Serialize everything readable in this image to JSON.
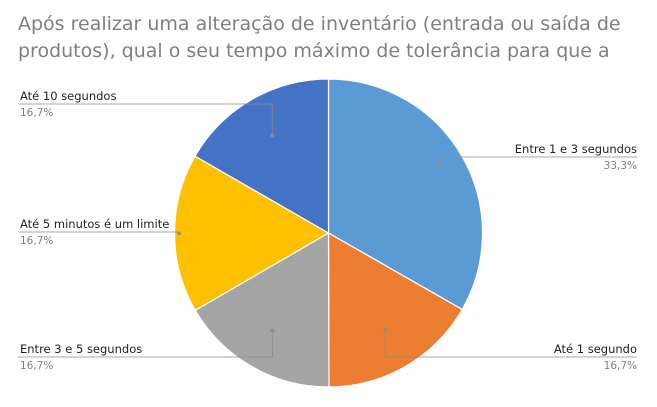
{
  "chart_data": {
    "type": "pie",
    "title": "Após realizar uma alteração de inventário (entrada ou saída de produtos), qual o seu tempo máximo de tolerância para que a",
    "title_lines": [
      "Após realizar uma alteração de inventário (entrada ou saída de",
      "produtos), qual o seu tempo máximo de tolerância para que a"
    ],
    "slices": [
      {
        "label": "Entre 1 e 3 segundos",
        "value": 33.3,
        "value_label": "33,3%",
        "color": "#5B9BD5"
      },
      {
        "label": "Até 1 segundo",
        "value": 16.7,
        "value_label": "16,7%",
        "color": "#ED7D31"
      },
      {
        "label": "Entre 3 e 5 segundos",
        "value": 16.7,
        "value_label": "16,7%",
        "color": "#A5A5A5"
      },
      {
        "label": "Até 5 minutos é um limite",
        "value": 16.7,
        "value_label": "16,7%",
        "color": "#FFC000"
      },
      {
        "label": "Até 10 segundos",
        "value": 16.7,
        "value_label": "16,7%",
        "color": "#4472C4"
      }
    ],
    "start_angle": "12 o'clock",
    "direction": "clockwise",
    "legend": "none"
  }
}
